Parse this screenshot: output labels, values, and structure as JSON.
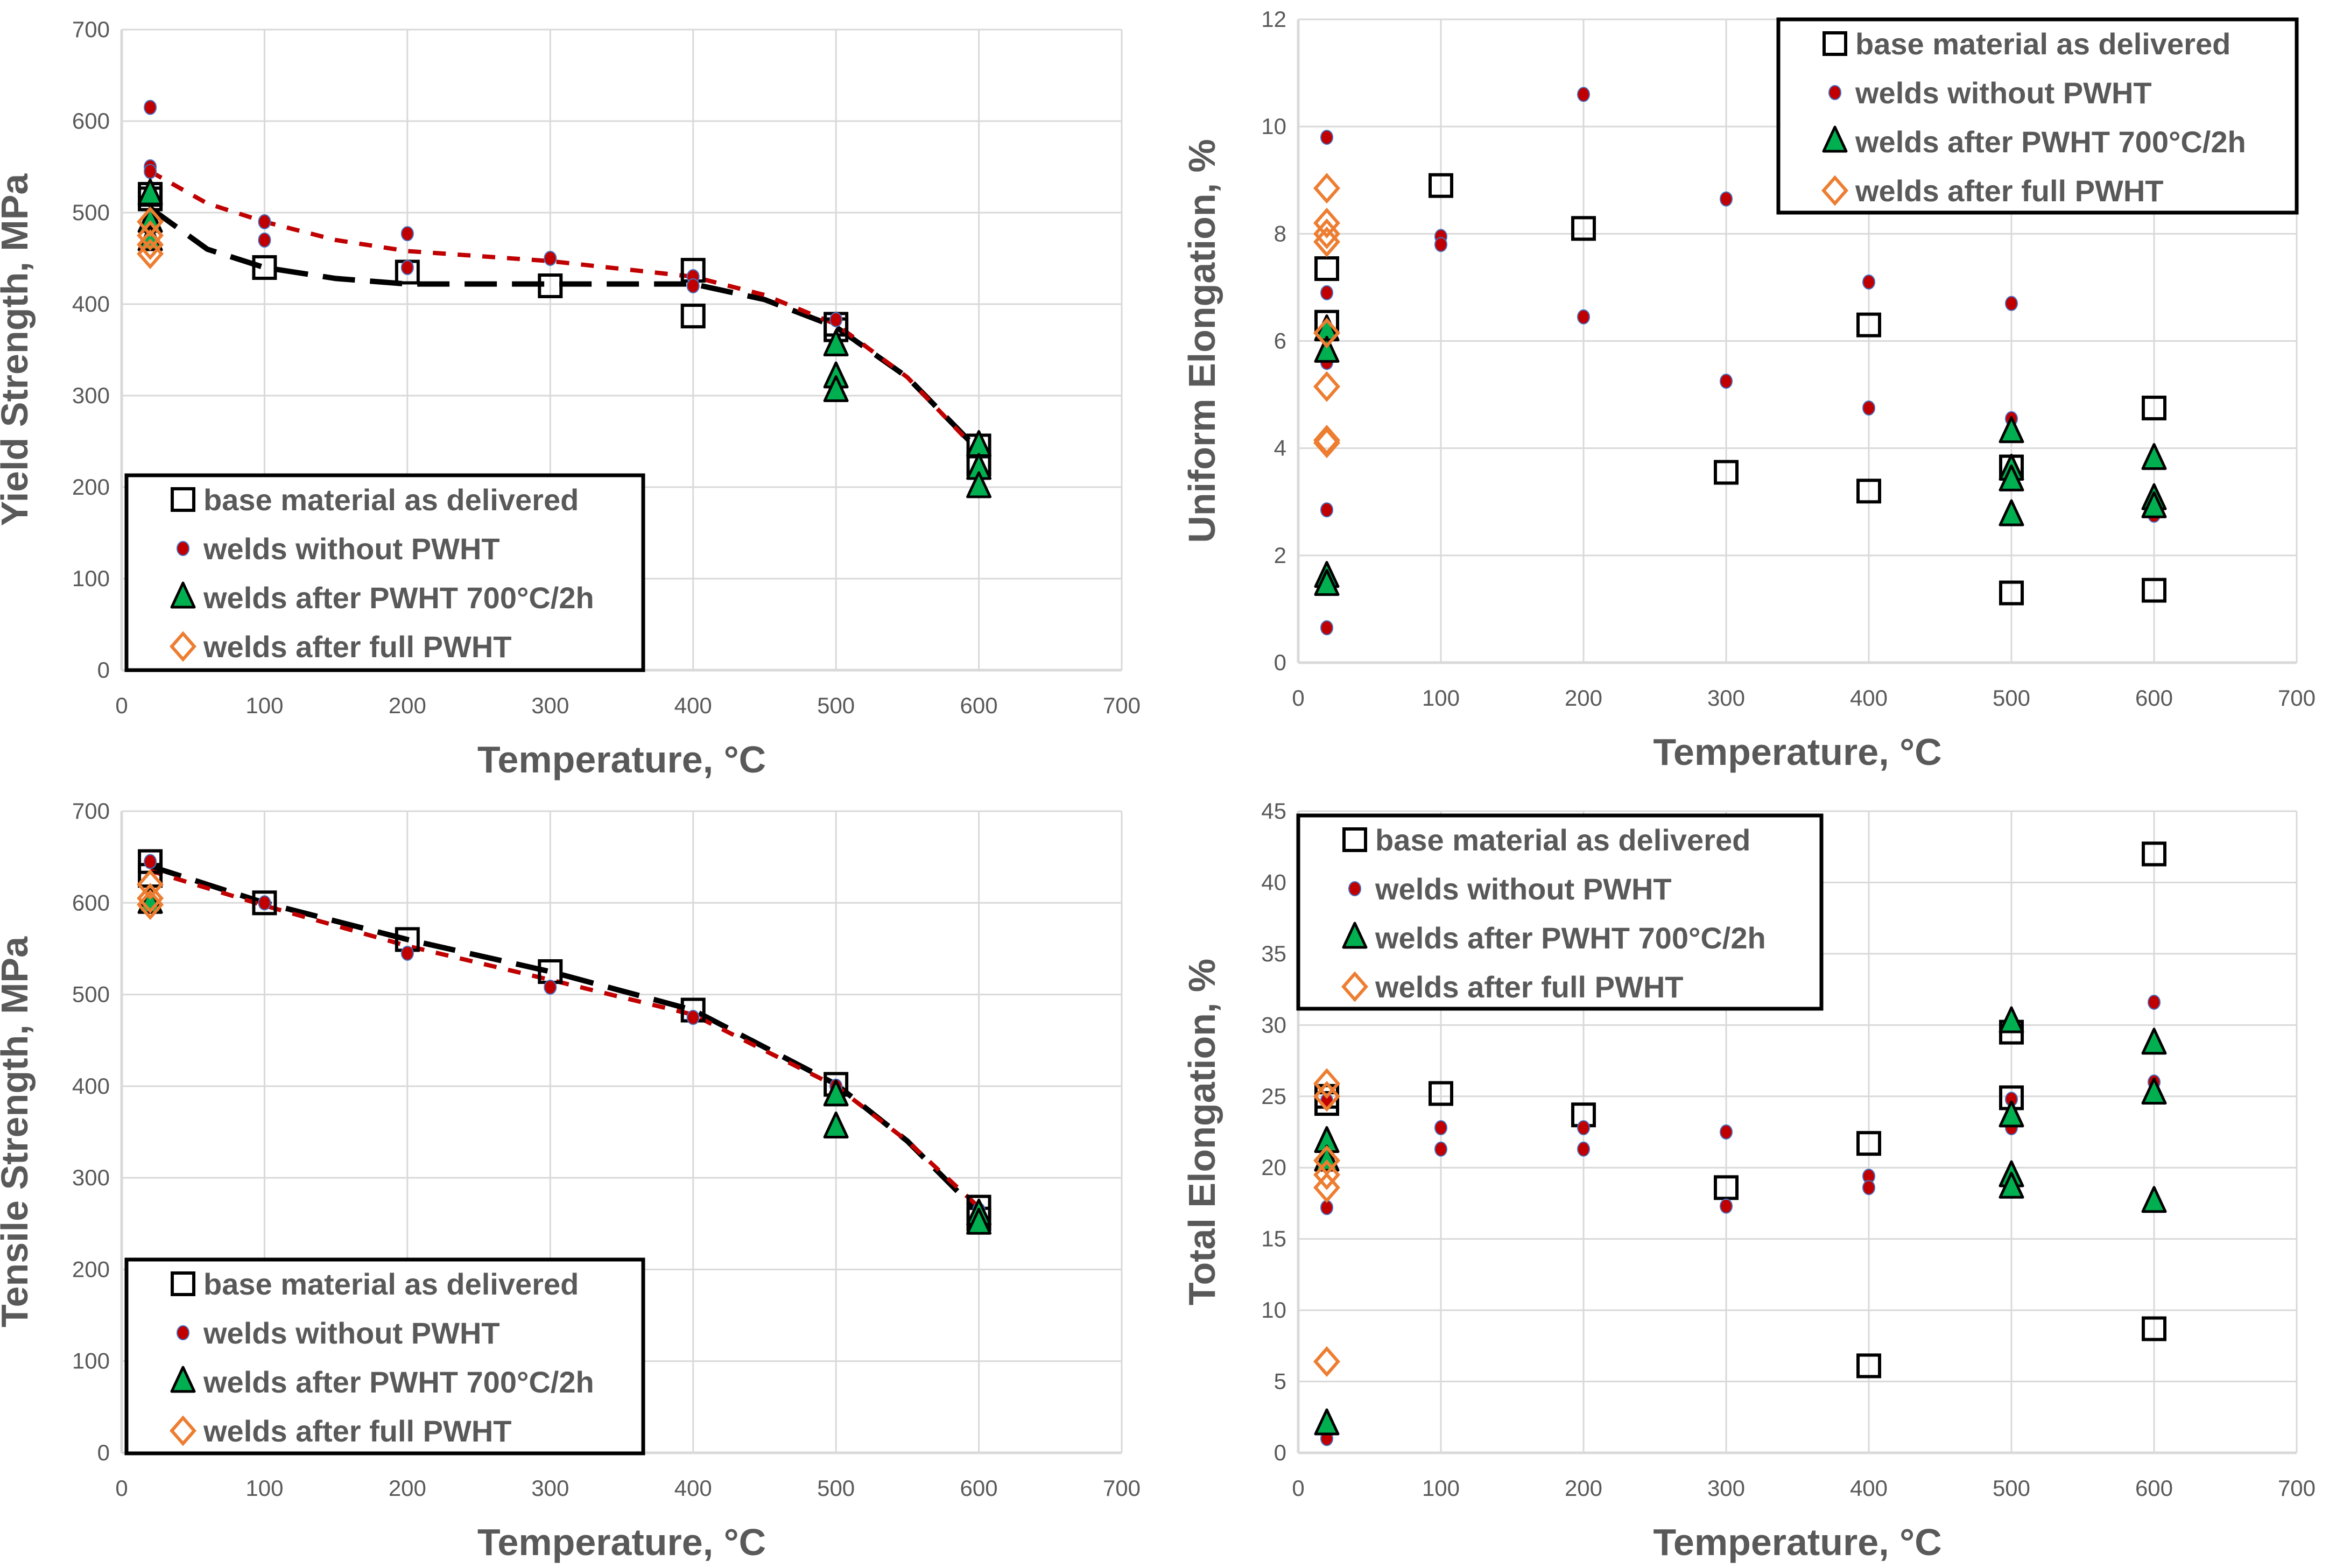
{
  "legend_labels": [
    "base material as delivered",
    "welds without PWHT",
    "welds after PWHT 700°C/2h",
    "welds after full PWHT"
  ],
  "colors": {
    "base": "#000000",
    "welds": "#c00000",
    "pwht700": "#00b050",
    "full": "#ed7d31",
    "grid": "#d9d9d9",
    "text": "#595959"
  },
  "chart_data": [
    {
      "type": "scatter",
      "title": "",
      "xlabel": "Temperature, °C",
      "ylabel": "Yield Strength, MPa",
      "xlim": [
        0,
        700
      ],
      "ylim": [
        0,
        700
      ],
      "xticks": [
        0,
        100,
        200,
        300,
        400,
        500,
        600,
        700
      ],
      "yticks": [
        0,
        100,
        200,
        300,
        400,
        500,
        600,
        700
      ],
      "grid": true,
      "legend_position": "bottom-left",
      "series": [
        {
          "name": "base material as delivered",
          "marker": "square",
          "points": [
            [
              20,
              520
            ],
            [
              20,
              515
            ],
            [
              100,
              440
            ],
            [
              200,
              435
            ],
            [
              300,
              420
            ],
            [
              400,
              437
            ],
            [
              400,
              387
            ],
            [
              500,
              378
            ],
            [
              500,
              372
            ],
            [
              600,
              245
            ],
            [
              600,
              225
            ]
          ]
        },
        {
          "name": "welds without PWHT",
          "marker": "circle",
          "points": [
            [
              20,
              615
            ],
            [
              20,
              550
            ],
            [
              20,
              545
            ],
            [
              100,
              490
            ],
            [
              100,
              470
            ],
            [
              200,
              477
            ],
            [
              200,
              440
            ],
            [
              300,
              450
            ],
            [
              400,
              430
            ],
            [
              400,
              420
            ],
            [
              500,
              383
            ],
            [
              600,
              240
            ],
            [
              600,
              215
            ]
          ]
        },
        {
          "name": "welds after PWHT 700°C/2h",
          "marker": "triangle",
          "points": [
            [
              20,
              520
            ],
            [
              20,
              490
            ],
            [
              20,
              470
            ],
            [
              500,
              355
            ],
            [
              500,
              320
            ],
            [
              500,
              305
            ],
            [
              600,
              245
            ],
            [
              600,
              220
            ],
            [
              600,
              200
            ]
          ]
        },
        {
          "name": "welds after full PWHT",
          "marker": "diamond",
          "points": [
            [
              20,
              490
            ],
            [
              20,
              475
            ],
            [
              20,
              465
            ],
            [
              20,
              455
            ]
          ]
        }
      ],
      "trendlines": [
        {
          "color": "#000000",
          "points": [
            [
              20,
              505
            ],
            [
              60,
              460
            ],
            [
              100,
              440
            ],
            [
              150,
              428
            ],
            [
              200,
              422
            ],
            [
              300,
              422
            ],
            [
              400,
              422
            ],
            [
              450,
              405
            ],
            [
              500,
              375
            ],
            [
              550,
              320
            ],
            [
              600,
              240
            ]
          ]
        },
        {
          "color": "#c00000",
          "points": [
            [
              20,
              545
            ],
            [
              60,
              510
            ],
            [
              100,
              490
            ],
            [
              150,
              470
            ],
            [
              200,
              458
            ],
            [
              300,
              447
            ],
            [
              400,
              430
            ],
            [
              450,
              410
            ],
            [
              500,
              378
            ],
            [
              550,
              320
            ],
            [
              600,
              238
            ]
          ]
        }
      ]
    },
    {
      "type": "scatter",
      "title": "",
      "xlabel": "Temperature, °C",
      "ylabel": "Uniform Elongation, %",
      "xlim": [
        0,
        700
      ],
      "ylim": [
        0,
        12
      ],
      "xticks": [
        0,
        100,
        200,
        300,
        400,
        500,
        600,
        700
      ],
      "yticks": [
        0,
        2,
        4,
        6,
        8,
        10,
        12
      ],
      "grid": true,
      "legend_position": "top-right",
      "series": [
        {
          "name": "base material as delivered",
          "marker": "square",
          "points": [
            [
              20,
              7.35
            ],
            [
              20,
              6.35
            ],
            [
              100,
              8.9
            ],
            [
              200,
              8.1
            ],
            [
              300,
              3.55
            ],
            [
              400,
              6.3
            ],
            [
              400,
              3.2
            ],
            [
              500,
              3.65
            ],
            [
              500,
              1.3
            ],
            [
              600,
              4.75
            ],
            [
              600,
              1.35
            ]
          ]
        },
        {
          "name": "welds without PWHT",
          "marker": "circle",
          "points": [
            [
              20,
              9.8
            ],
            [
              20,
              6.9
            ],
            [
              20,
              5.6
            ],
            [
              20,
              2.85
            ],
            [
              20,
              0.65
            ],
            [
              100,
              7.95
            ],
            [
              100,
              7.8
            ],
            [
              200,
              10.6
            ],
            [
              200,
              6.45
            ],
            [
              300,
              8.65
            ],
            [
              300,
              5.25
            ],
            [
              400,
              7.1
            ],
            [
              400,
              4.75
            ],
            [
              500,
              6.7
            ],
            [
              500,
              4.55
            ],
            [
              600,
              2.75
            ]
          ]
        },
        {
          "name": "welds after PWHT 700°C/2h",
          "marker": "triangle",
          "points": [
            [
              20,
              6.2
            ],
            [
              20,
              5.8
            ],
            [
              20,
              1.6
            ],
            [
              20,
              1.45
            ],
            [
              500,
              4.3
            ],
            [
              500,
              3.6
            ],
            [
              500,
              3.4
            ],
            [
              500,
              2.75
            ],
            [
              600,
              3.8
            ],
            [
              600,
              3.05
            ],
            [
              600,
              2.9
            ]
          ]
        },
        {
          "name": "welds after full PWHT",
          "marker": "diamond",
          "points": [
            [
              20,
              8.85
            ],
            [
              20,
              8.2
            ],
            [
              20,
              8.0
            ],
            [
              20,
              7.85
            ],
            [
              20,
              6.15
            ],
            [
              20,
              5.15
            ],
            [
              20,
              4.15
            ],
            [
              20,
              4.1
            ]
          ]
        }
      ],
      "trendlines": []
    },
    {
      "type": "scatter",
      "title": "",
      "xlabel": "Temperature, °C",
      "ylabel": "Tensile Strength, MPa",
      "xlim": [
        0,
        700
      ],
      "ylim": [
        0,
        700
      ],
      "xticks": [
        0,
        100,
        200,
        300,
        400,
        500,
        600,
        700
      ],
      "yticks": [
        0,
        100,
        200,
        300,
        400,
        500,
        600,
        700
      ],
      "grid": true,
      "legend_position": "bottom-left",
      "series": [
        {
          "name": "base material as delivered",
          "marker": "square",
          "points": [
            [
              20,
              645
            ],
            [
              20,
              630
            ],
            [
              100,
              600
            ],
            [
              200,
              560
            ],
            [
              300,
              525
            ],
            [
              400,
              483
            ],
            [
              500,
              402
            ],
            [
              600,
              268
            ],
            [
              600,
              255
            ]
          ]
        },
        {
          "name": "welds without PWHT",
          "marker": "circle",
          "points": [
            [
              20,
              645
            ],
            [
              100,
              600
            ],
            [
              200,
              545
            ],
            [
              300,
              508
            ],
            [
              400,
              475
            ],
            [
              500,
              400
            ],
            [
              600,
              265
            ]
          ]
        },
        {
          "name": "welds after PWHT 700°C/2h",
          "marker": "triangle",
          "points": [
            [
              20,
              600
            ],
            [
              500,
              390
            ],
            [
              500,
              355
            ],
            [
              600,
              260
            ],
            [
              600,
              250
            ]
          ]
        },
        {
          "name": "welds after full PWHT",
          "marker": "diamond",
          "points": [
            [
              20,
              620
            ],
            [
              20,
              605
            ],
            [
              20,
              598
            ]
          ]
        }
      ],
      "trendlines": [
        {
          "color": "#000000",
          "points": [
            [
              20,
              640
            ],
            [
              100,
              600
            ],
            [
              200,
              560
            ],
            [
              300,
              525
            ],
            [
              400,
              483
            ],
            [
              500,
              402
            ],
            [
              550,
              340
            ],
            [
              600,
              262
            ]
          ]
        },
        {
          "color": "#c00000",
          "points": [
            [
              20,
              635
            ],
            [
              100,
              597
            ],
            [
              200,
              553
            ],
            [
              300,
              516
            ],
            [
              400,
              478
            ],
            [
              500,
              400
            ],
            [
              550,
              340
            ],
            [
              600,
              268
            ]
          ]
        }
      ]
    },
    {
      "type": "scatter",
      "title": "",
      "xlabel": "Temperature, °C",
      "ylabel": "Total Elongation, %",
      "xlim": [
        0,
        700
      ],
      "ylim": [
        0,
        45
      ],
      "xticks": [
        0,
        100,
        200,
        300,
        400,
        500,
        600,
        700
      ],
      "yticks": [
        0,
        5,
        10,
        15,
        20,
        25,
        30,
        35,
        40,
        45
      ],
      "grid": true,
      "legend_position": "top-left",
      "series": [
        {
          "name": "base material as delivered",
          "marker": "square",
          "points": [
            [
              20,
              25
            ],
            [
              20,
              24.5
            ],
            [
              100,
              25.2
            ],
            [
              200,
              23.7
            ],
            [
              300,
              18.6
            ],
            [
              400,
              21.7
            ],
            [
              400,
              6.1
            ],
            [
              500,
              29.5
            ],
            [
              500,
              24.9
            ],
            [
              600,
              42
            ],
            [
              600,
              8.7
            ]
          ]
        },
        {
          "name": "welds without PWHT",
          "marker": "circle",
          "points": [
            [
              20,
              24.7
            ],
            [
              20,
              17.2
            ],
            [
              20,
              1
            ],
            [
              100,
              22.8
            ],
            [
              100,
              21.3
            ],
            [
              200,
              22.8
            ],
            [
              200,
              21.3
            ],
            [
              300,
              22.5
            ],
            [
              300,
              17.3
            ],
            [
              400,
              19.4
            ],
            [
              400,
              18.6
            ],
            [
              500,
              24.8
            ],
            [
              500,
              22.8
            ],
            [
              600,
              31.6
            ],
            [
              600,
              26
            ]
          ]
        },
        {
          "name": "welds after PWHT 700°C/2h",
          "marker": "triangle",
          "points": [
            [
              20,
              21.8
            ],
            [
              20,
              20.5
            ],
            [
              20,
              2
            ],
            [
              500,
              30.2
            ],
            [
              500,
              23.6
            ],
            [
              500,
              19.4
            ],
            [
              500,
              18.6
            ],
            [
              600,
              28.7
            ],
            [
              600,
              25.2
            ],
            [
              600,
              17.6
            ]
          ]
        },
        {
          "name": "welds after full PWHT",
          "marker": "diamond",
          "points": [
            [
              20,
              25.9
            ],
            [
              20,
              25
            ],
            [
              20,
              20.5
            ],
            [
              20,
              19.5
            ],
            [
              20,
              18.6
            ],
            [
              20,
              6.4
            ]
          ]
        }
      ],
      "trendlines": []
    }
  ]
}
